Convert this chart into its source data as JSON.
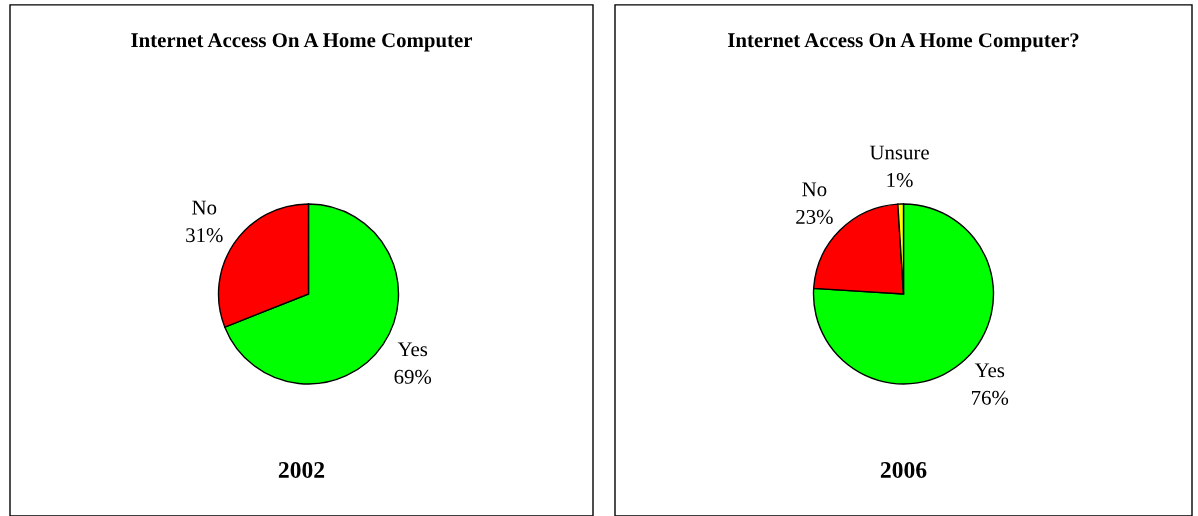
{
  "chart_data": [
    {
      "type": "pie",
      "title": "Internet Access On A Home Computer",
      "xlabel": "2002",
      "categories": [
        "Yes",
        "No"
      ],
      "values": [
        69,
        31
      ],
      "colors": [
        "#00ff00",
        "#ff0000"
      ],
      "value_labels": [
        "69%",
        "31%"
      ]
    },
    {
      "type": "pie",
      "title": "Internet Access On A Home Computer?",
      "xlabel": "2006",
      "categories": [
        "Yes",
        "No",
        "Unsure"
      ],
      "values": [
        76,
        23,
        1
      ],
      "colors": [
        "#00ff00",
        "#ff0000",
        "#ffff00"
      ],
      "value_labels": [
        "76%",
        "23%",
        "1%"
      ]
    }
  ]
}
